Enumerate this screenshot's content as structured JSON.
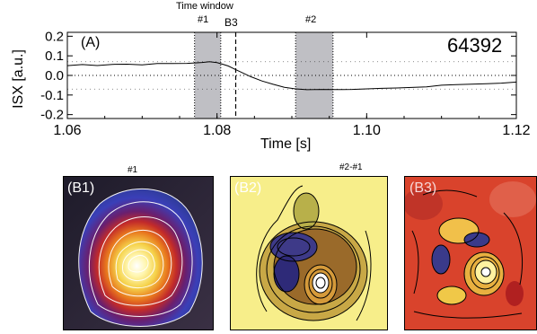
{
  "chart_data": {
    "type": "line",
    "panel_label": "(A)",
    "shot_number": "64392",
    "xlabel": "Time [s]",
    "ylabel": "ISX [a.u.]",
    "xlim": [
      1.06,
      1.12
    ],
    "ylim": [
      -0.22,
      0.22
    ],
    "x_ticks": [
      "1.06",
      "1.08",
      "1.10",
      "1.12"
    ],
    "y_ticks": [
      "0.2",
      "0.1",
      "0.0",
      "-0.1",
      "-0.2"
    ],
    "series": [
      {
        "x": [
          1.06,
          1.062,
          1.064,
          1.066,
          1.068,
          1.07,
          1.072,
          1.074,
          1.076,
          1.078,
          1.079,
          1.08,
          1.0808,
          1.0815,
          1.0825,
          1.0835,
          1.0845,
          1.086,
          1.0875,
          1.089,
          1.0905,
          1.092,
          1.094,
          1.096,
          1.098,
          1.1,
          1.102,
          1.104,
          1.106,
          1.108,
          1.11,
          1.112,
          1.114,
          1.116,
          1.118,
          1.12
        ],
        "y": [
          0.05,
          0.052,
          0.05,
          0.054,
          0.056,
          0.052,
          0.058,
          0.06,
          0.064,
          0.068,
          0.07,
          0.066,
          0.06,
          0.048,
          0.03,
          0.01,
          -0.01,
          -0.03,
          -0.048,
          -0.062,
          -0.072,
          -0.075,
          -0.074,
          -0.07,
          -0.068,
          -0.066,
          -0.064,
          -0.06,
          -0.058,
          -0.056,
          -0.054,
          -0.05,
          -0.046,
          -0.044,
          -0.04,
          -0.036
        ]
      }
    ],
    "zero_line": 0.0,
    "reference_levels": [
      0.07,
      -0.07
    ],
    "time_windows": [
      {
        "label": "#1",
        "start": 1.077,
        "end": 1.0805
      },
      {
        "label": "#2",
        "start": 1.0905,
        "end": 1.0955
      }
    ],
    "vertical_marker": {
      "label": "B3",
      "x": 1.0825
    },
    "time_window_title": "Time window"
  },
  "images": {
    "b1": {
      "label": "(B1)",
      "caption": "#1"
    },
    "b2": {
      "label": "(B2)",
      "caption": "#2-#1"
    },
    "b3": {
      "label": "(B3)",
      "caption": ""
    }
  },
  "colors": {
    "window_fill": "#bfbfc4",
    "plot_line": "#000000"
  }
}
